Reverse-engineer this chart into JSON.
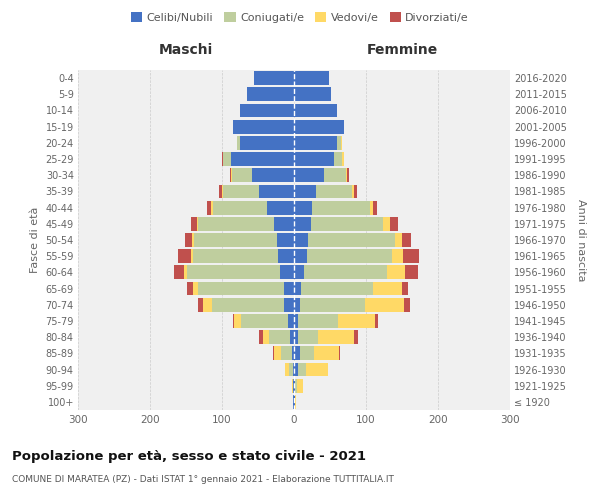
{
  "age_groups": [
    "100+",
    "95-99",
    "90-94",
    "85-89",
    "80-84",
    "75-79",
    "70-74",
    "65-69",
    "60-64",
    "55-59",
    "50-54",
    "45-49",
    "40-44",
    "35-39",
    "30-34",
    "25-29",
    "20-24",
    "15-19",
    "10-14",
    "5-9",
    "0-4"
  ],
  "birth_years": [
    "≤ 1920",
    "1921-1925",
    "1926-1930",
    "1931-1935",
    "1936-1940",
    "1941-1945",
    "1946-1950",
    "1951-1955",
    "1956-1960",
    "1961-1965",
    "1966-1970",
    "1971-1975",
    "1976-1980",
    "1981-1985",
    "1986-1990",
    "1991-1995",
    "1996-2000",
    "2001-2005",
    "2006-2010",
    "2011-2015",
    "2016-2020"
  ],
  "males_celibe": [
    1,
    1,
    2,
    3,
    5,
    8,
    14,
    14,
    20,
    22,
    24,
    28,
    38,
    48,
    58,
    88,
    75,
    85,
    75,
    65,
    55
  ],
  "males_coniugato": [
    0,
    1,
    5,
    15,
    30,
    65,
    100,
    120,
    128,
    118,
    115,
    105,
    75,
    50,
    28,
    10,
    4,
    0,
    0,
    0,
    0
  ],
  "males_vedovo": [
    0,
    1,
    5,
    10,
    8,
    10,
    12,
    6,
    5,
    3,
    2,
    2,
    2,
    2,
    1,
    1,
    0,
    0,
    0,
    0,
    0
  ],
  "males_divorziato": [
    0,
    0,
    0,
    1,
    5,
    2,
    8,
    8,
    14,
    18,
    10,
    8,
    6,
    4,
    2,
    1,
    0,
    0,
    0,
    0,
    0
  ],
  "females_nubile": [
    1,
    2,
    5,
    8,
    6,
    6,
    8,
    10,
    14,
    18,
    20,
    24,
    25,
    30,
    42,
    55,
    60,
    70,
    60,
    52,
    48
  ],
  "females_coniugata": [
    0,
    2,
    12,
    20,
    28,
    55,
    90,
    100,
    115,
    118,
    120,
    100,
    80,
    50,
    30,
    12,
    5,
    0,
    0,
    0,
    0
  ],
  "females_vedova": [
    2,
    8,
    30,
    35,
    50,
    52,
    55,
    40,
    25,
    15,
    10,
    10,
    5,
    3,
    2,
    2,
    1,
    0,
    0,
    0,
    0
  ],
  "females_divorziata": [
    0,
    0,
    0,
    1,
    5,
    3,
    8,
    8,
    18,
    22,
    12,
    10,
    5,
    4,
    2,
    1,
    0,
    0,
    0,
    0,
    0
  ],
  "colors": {
    "celibe": "#4472C4",
    "coniugato": "#BFCE9E",
    "vedovo": "#FFD966",
    "divorziato": "#C0504D"
  },
  "xlim": 300,
  "title": "Popolazione per età, sesso e stato civile - 2021",
  "subtitle": "COMUNE DI MARATEA (PZ) - Dati ISTAT 1° gennaio 2021 - Elaborazione TUTTITALIA.IT",
  "ylabel_left": "Fasce di età",
  "ylabel_right": "Anni di nascita",
  "label_maschi": "Maschi",
  "label_femmine": "Femmine",
  "legend_labels": [
    "Celibi/Nubili",
    "Coniugati/e",
    "Vedovi/e",
    "Divorziati/e"
  ],
  "bg_color": "#FFFFFF",
  "plot_bg": "#F0F0F0",
  "grid_color": "#CCCCCC"
}
